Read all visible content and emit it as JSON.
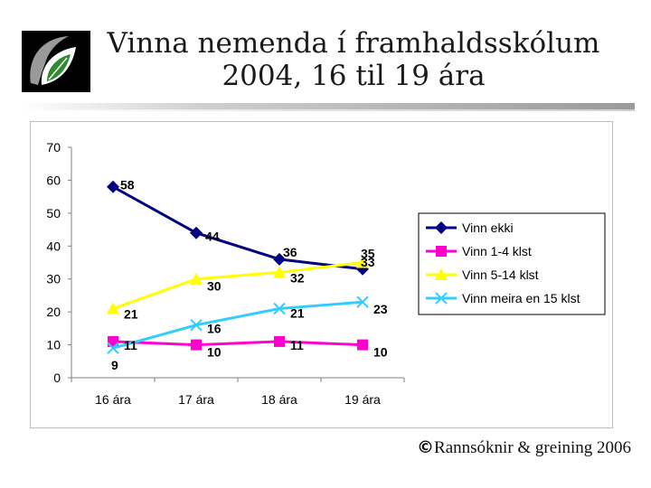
{
  "slide": {
    "title_line1": "Vinna nemenda í framhaldsskólum",
    "title_line2": "2004, 16 til 19 ára",
    "footer_symbol": "©",
    "footer_text": "Rannsóknir & greining 2006",
    "logo_icon": "leaf-logo"
  },
  "chart_data": {
    "type": "line",
    "categories": [
      "16 ára",
      "17 ára",
      "18 ára",
      "19 ára"
    ],
    "ylim": [
      0,
      70
    ],
    "yticks": [
      0,
      10,
      20,
      30,
      40,
      50,
      60,
      70
    ],
    "grid": false,
    "legend_position": "right",
    "series": [
      {
        "name": "Vinn ekki",
        "values": [
          58,
          44,
          36,
          33
        ],
        "color": "#000080",
        "marker": "diamond"
      },
      {
        "name": "Vinn 1-4 klst",
        "values": [
          11,
          10,
          11,
          10
        ],
        "color": "#ff00cc",
        "marker": "square"
      },
      {
        "name": "Vinn 5-14 klst",
        "values": [
          21,
          30,
          32,
          35
        ],
        "color": "#ffff00",
        "marker": "triangle"
      },
      {
        "name": "Vinn meira en 15 klst",
        "values": [
          9,
          16,
          21,
          23
        ],
        "color": "#33ccff",
        "marker": "x"
      }
    ]
  }
}
